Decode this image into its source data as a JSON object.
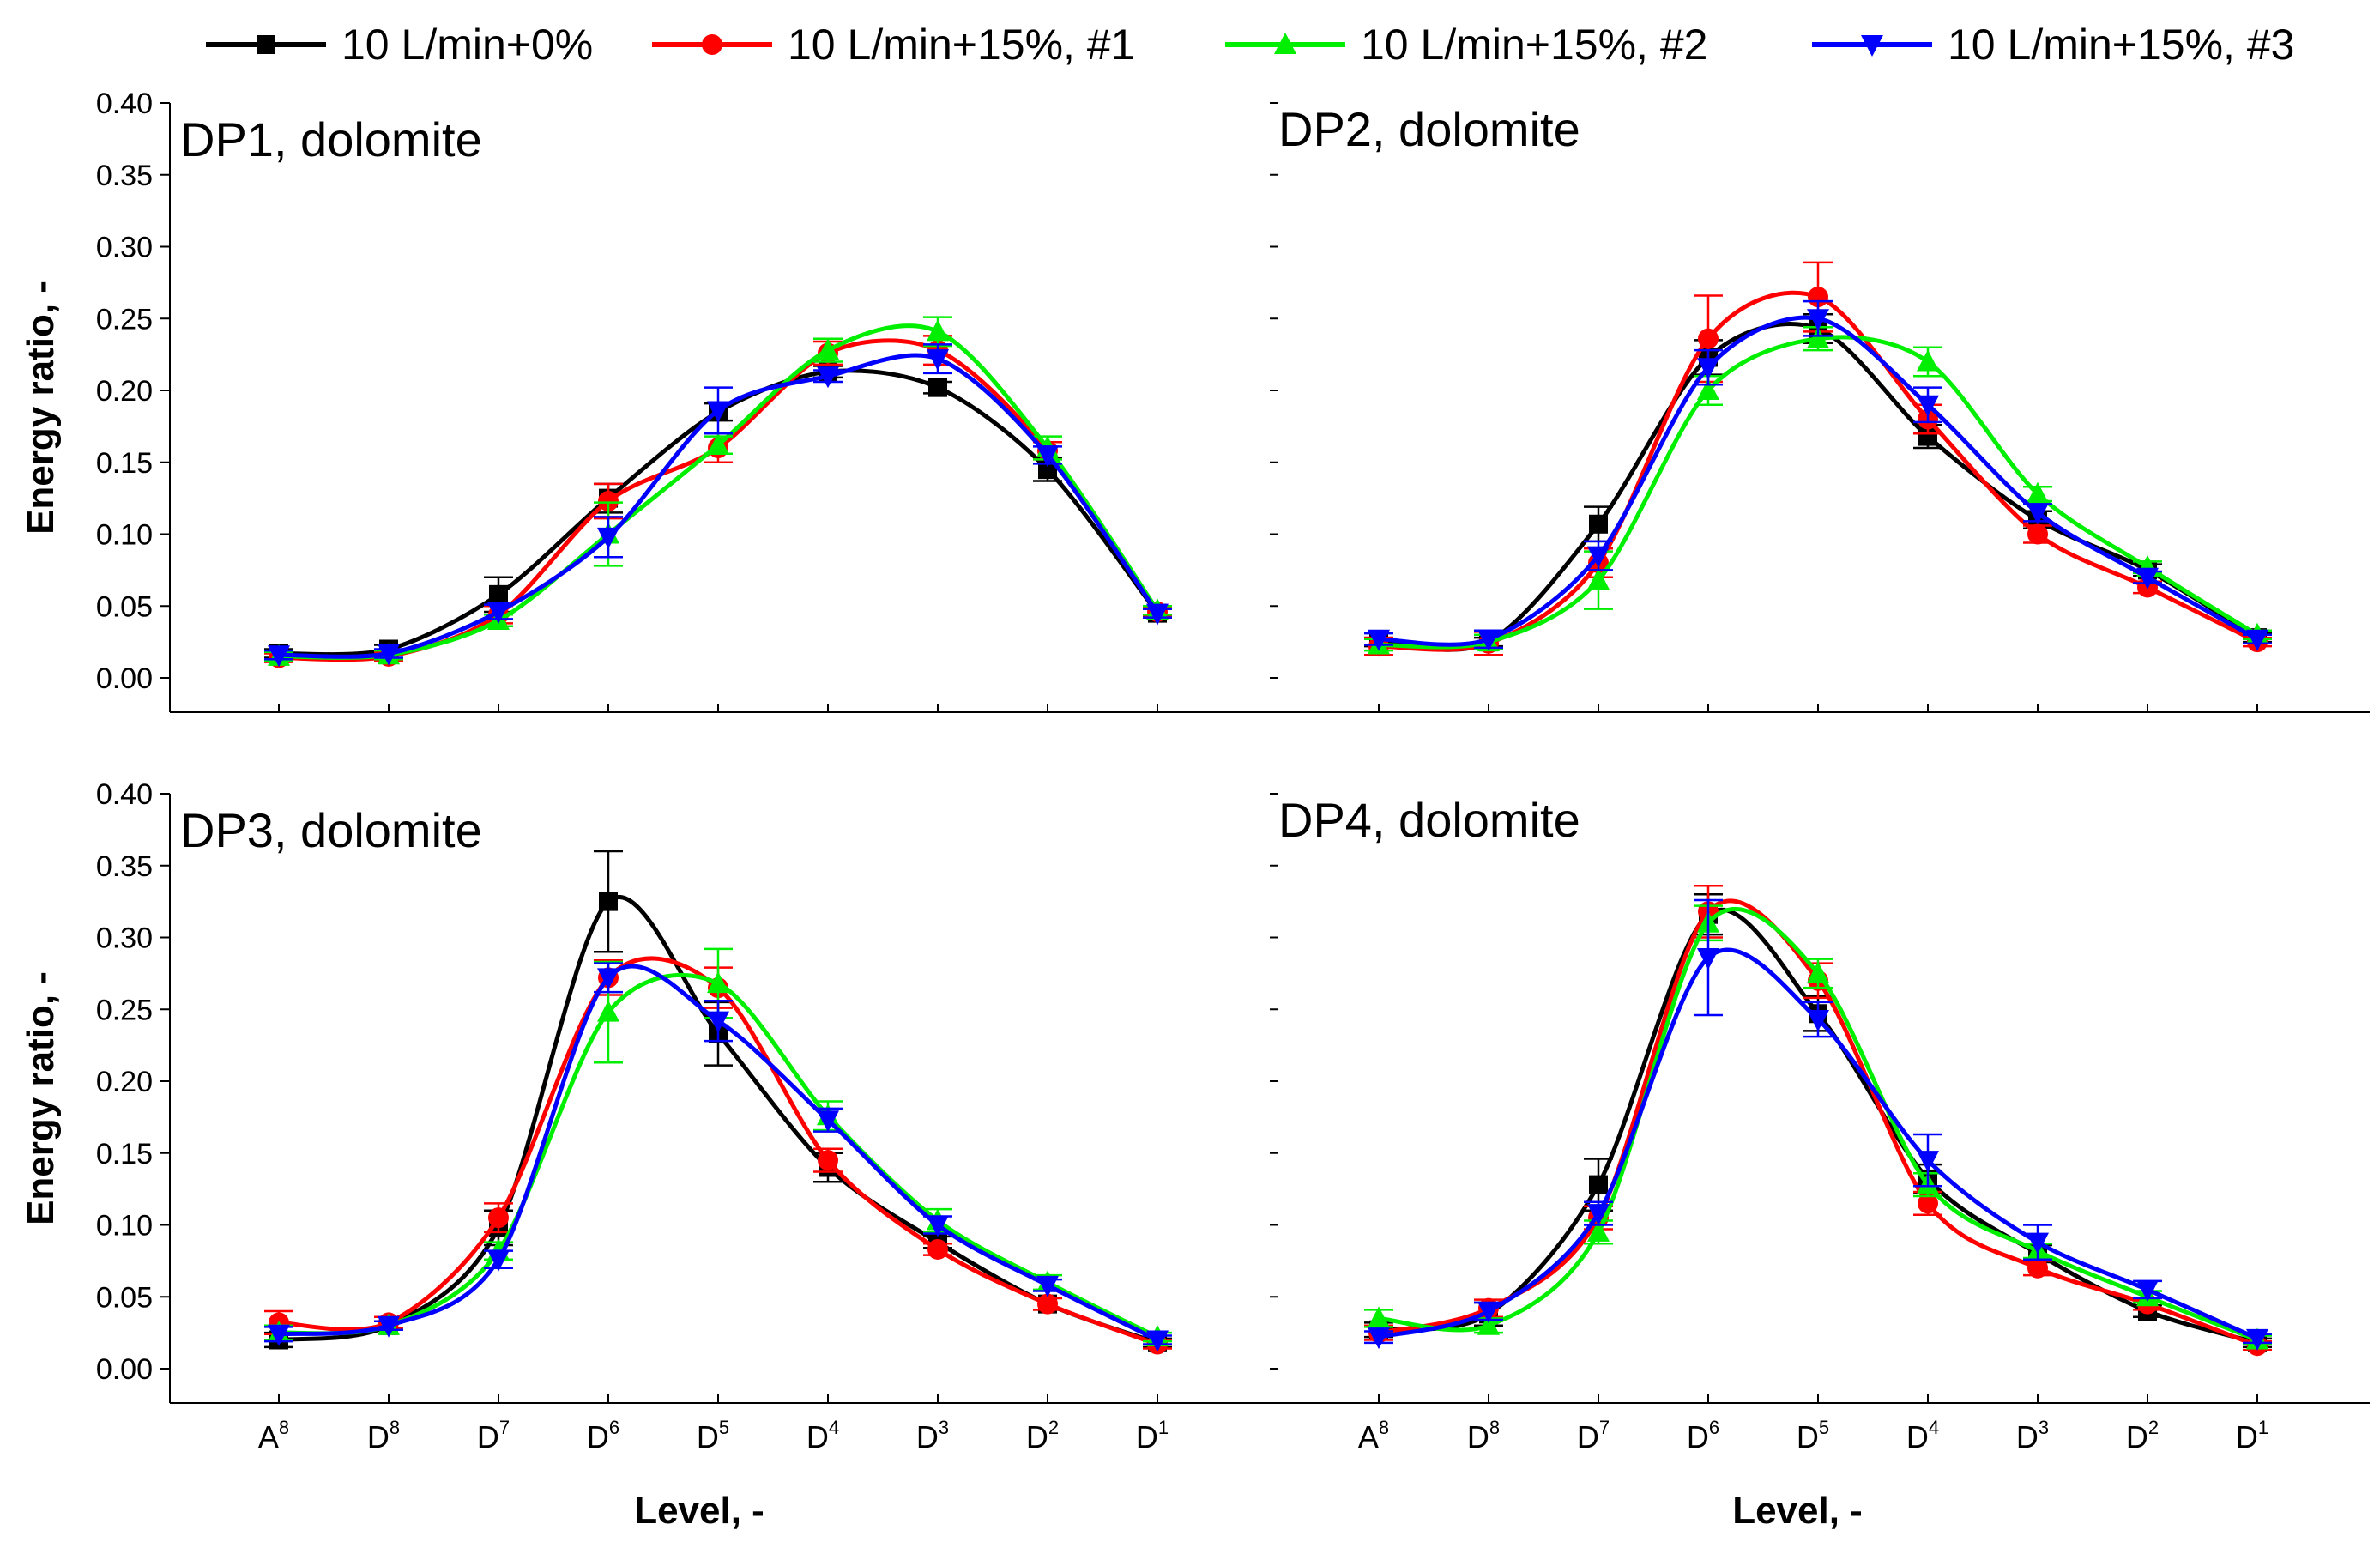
{
  "chart_data": {
    "type": "line",
    "legend": {
      "placement": "top",
      "entries": [
        {
          "name": "10 L/min+0%",
          "color": "#000000",
          "marker": "square"
        },
        {
          "name": "10 L/min+15%, #1",
          "color": "#ff0000",
          "marker": "circle"
        },
        {
          "name": "10 L/min+15%, #2",
          "color": "#00ee00",
          "marker": "triangle-up"
        },
        {
          "name": "10 L/min+15%, #3",
          "color": "#0000ff",
          "marker": "triangle-down"
        }
      ]
    },
    "categories": [
      {
        "base": "A",
        "sup": "8"
      },
      {
        "base": "D",
        "sup": "8"
      },
      {
        "base": "D",
        "sup": "7"
      },
      {
        "base": "D",
        "sup": "6"
      },
      {
        "base": "D",
        "sup": "5"
      },
      {
        "base": "D",
        "sup": "4"
      },
      {
        "base": "D",
        "sup": "3"
      },
      {
        "base": "D",
        "sup": "2"
      },
      {
        "base": "D",
        "sup": "1"
      }
    ],
    "xlabel": "Level, -",
    "ylabel": "Energy ratio, -",
    "ylim": [
      0,
      0.4
    ],
    "yticks": [
      "0.00",
      "0.05",
      "0.10",
      "0.15",
      "0.20",
      "0.25",
      "0.30",
      "0.35",
      "0.40"
    ],
    "panels": [
      {
        "title": "DP1, dolomite",
        "series": [
          {
            "name": "10 L/min+0%",
            "values": [
              0.017,
              0.02,
              0.058,
              0.125,
              0.185,
              0.213,
              0.202,
              0.145,
              0.045
            ],
            "errors": [
              0.003,
              0.003,
              0.012,
              0.01,
              0.006,
              0.004,
              0.004,
              0.008,
              0.003
            ]
          },
          {
            "name": "10 L/min+15%, #1",
            "values": [
              0.014,
              0.015,
              0.044,
              0.123,
              0.16,
              0.226,
              0.228,
              0.158,
              0.046
            ],
            "errors": [
              0.003,
              0.003,
              0.006,
              0.012,
              0.01,
              0.008,
              0.01,
              0.006,
              0.003
            ]
          },
          {
            "name": "10 L/min+15%, #2",
            "values": [
              0.015,
              0.016,
              0.04,
              0.1,
              0.162,
              0.228,
              0.241,
              0.16,
              0.047
            ],
            "errors": [
              0.003,
              0.003,
              0.004,
              0.022,
              0.006,
              0.008,
              0.01,
              0.008,
              0.003
            ]
          },
          {
            "name": "10 L/min+15%, #3",
            "values": [
              0.016,
              0.017,
              0.046,
              0.098,
              0.186,
              0.21,
              0.222,
              0.155,
              0.045
            ],
            "errors": [
              0.003,
              0.003,
              0.005,
              0.014,
              0.016,
              0.004,
              0.01,
              0.006,
              0.003
            ]
          }
        ]
      },
      {
        "title": "DP2, dolomite",
        "series": [
          {
            "name": "10 L/min+0%",
            "values": [
              0.025,
              0.025,
              0.107,
              0.223,
              0.243,
              0.168,
              0.11,
              0.075,
              0.028
            ],
            "errors": [
              0.003,
              0.003,
              0.012,
              0.012,
              0.01,
              0.008,
              0.006,
              0.004,
              0.003
            ]
          },
          {
            "name": "10 L/min+15%, #1",
            "values": [
              0.022,
              0.024,
              0.08,
              0.236,
              0.265,
              0.18,
              0.1,
              0.063,
              0.025
            ],
            "errors": [
              0.006,
              0.008,
              0.01,
              0.03,
              0.024,
              0.01,
              0.006,
              0.004,
              0.003
            ]
          },
          {
            "name": "10 L/min+15%, #2",
            "values": [
              0.023,
              0.025,
              0.068,
              0.2,
              0.236,
              0.22,
              0.128,
              0.077,
              0.03
            ],
            "errors": [
              0.004,
              0.005,
              0.02,
              0.01,
              0.008,
              0.01,
              0.005,
              0.004,
              0.003
            ]
          },
          {
            "name": "10 L/min+15%, #3",
            "values": [
              0.027,
              0.027,
              0.085,
              0.216,
              0.25,
              0.19,
              0.115,
              0.07,
              0.027
            ],
            "errors": [
              0.004,
              0.006,
              0.01,
              0.012,
              0.012,
              0.012,
              0.006,
              0.004,
              0.003
            ]
          }
        ]
      },
      {
        "title": "DP3, dolomite",
        "series": [
          {
            "name": "10 L/min+0%",
            "values": [
              0.02,
              0.03,
              0.098,
              0.325,
              0.233,
              0.14,
              0.088,
              0.045,
              0.018
            ],
            "errors": [
              0.005,
              0.003,
              0.012,
              0.035,
              0.022,
              0.01,
              0.004,
              0.004,
              0.003
            ]
          },
          {
            "name": "10 L/min+15%, #1",
            "values": [
              0.032,
              0.032,
              0.105,
              0.272,
              0.265,
              0.145,
              0.083,
              0.045,
              0.017
            ],
            "errors": [
              0.008,
              0.004,
              0.01,
              0.012,
              0.014,
              0.008,
              0.004,
              0.004,
              0.003
            ]
          },
          {
            "name": "10 L/min+15%, #2",
            "values": [
              0.025,
              0.03,
              0.082,
              0.248,
              0.268,
              0.176,
              0.103,
              0.06,
              0.022
            ],
            "errors": [
              0.005,
              0.003,
              0.006,
              0.035,
              0.024,
              0.01,
              0.008,
              0.005,
              0.003
            ]
          },
          {
            "name": "10 L/min+15%, #3",
            "values": [
              0.024,
              0.03,
              0.076,
              0.272,
              0.242,
              0.173,
              0.1,
              0.058,
              0.02
            ],
            "errors": [
              0.005,
              0.003,
              0.006,
              0.01,
              0.014,
              0.008,
              0.006,
              0.004,
              0.003
            ]
          }
        ]
      },
      {
        "title": "DP4, dolomite",
        "series": [
          {
            "name": "10 L/min+0%",
            "values": [
              0.027,
              0.038,
              0.128,
              0.316,
              0.247,
              0.132,
              0.08,
              0.04,
              0.018
            ],
            "errors": [
              0.005,
              0.008,
              0.018,
              0.014,
              0.012,
              0.01,
              0.006,
              0.004,
              0.003
            ]
          },
          {
            "name": "10 L/min+15%, #1",
            "values": [
              0.025,
              0.042,
              0.105,
              0.318,
              0.27,
              0.115,
              0.07,
              0.045,
              0.016
            ],
            "errors": [
              0.005,
              0.006,
              0.008,
              0.018,
              0.012,
              0.008,
              0.005,
              0.004,
              0.003
            ]
          },
          {
            "name": "10 L/min+15%, #2",
            "values": [
              0.035,
              0.03,
              0.095,
              0.31,
              0.275,
              0.128,
              0.082,
              0.05,
              0.02
            ],
            "errors": [
              0.006,
              0.005,
              0.008,
              0.012,
              0.01,
              0.008,
              0.005,
              0.004,
              0.003
            ]
          },
          {
            "name": "10 L/min+15%, #3",
            "values": [
              0.022,
              0.04,
              0.108,
              0.286,
              0.243,
              0.145,
              0.088,
              0.055,
              0.021
            ],
            "errors": [
              0.004,
              0.006,
              0.008,
              0.04,
              0.012,
              0.018,
              0.012,
              0.006,
              0.003
            ]
          }
        ]
      }
    ]
  }
}
